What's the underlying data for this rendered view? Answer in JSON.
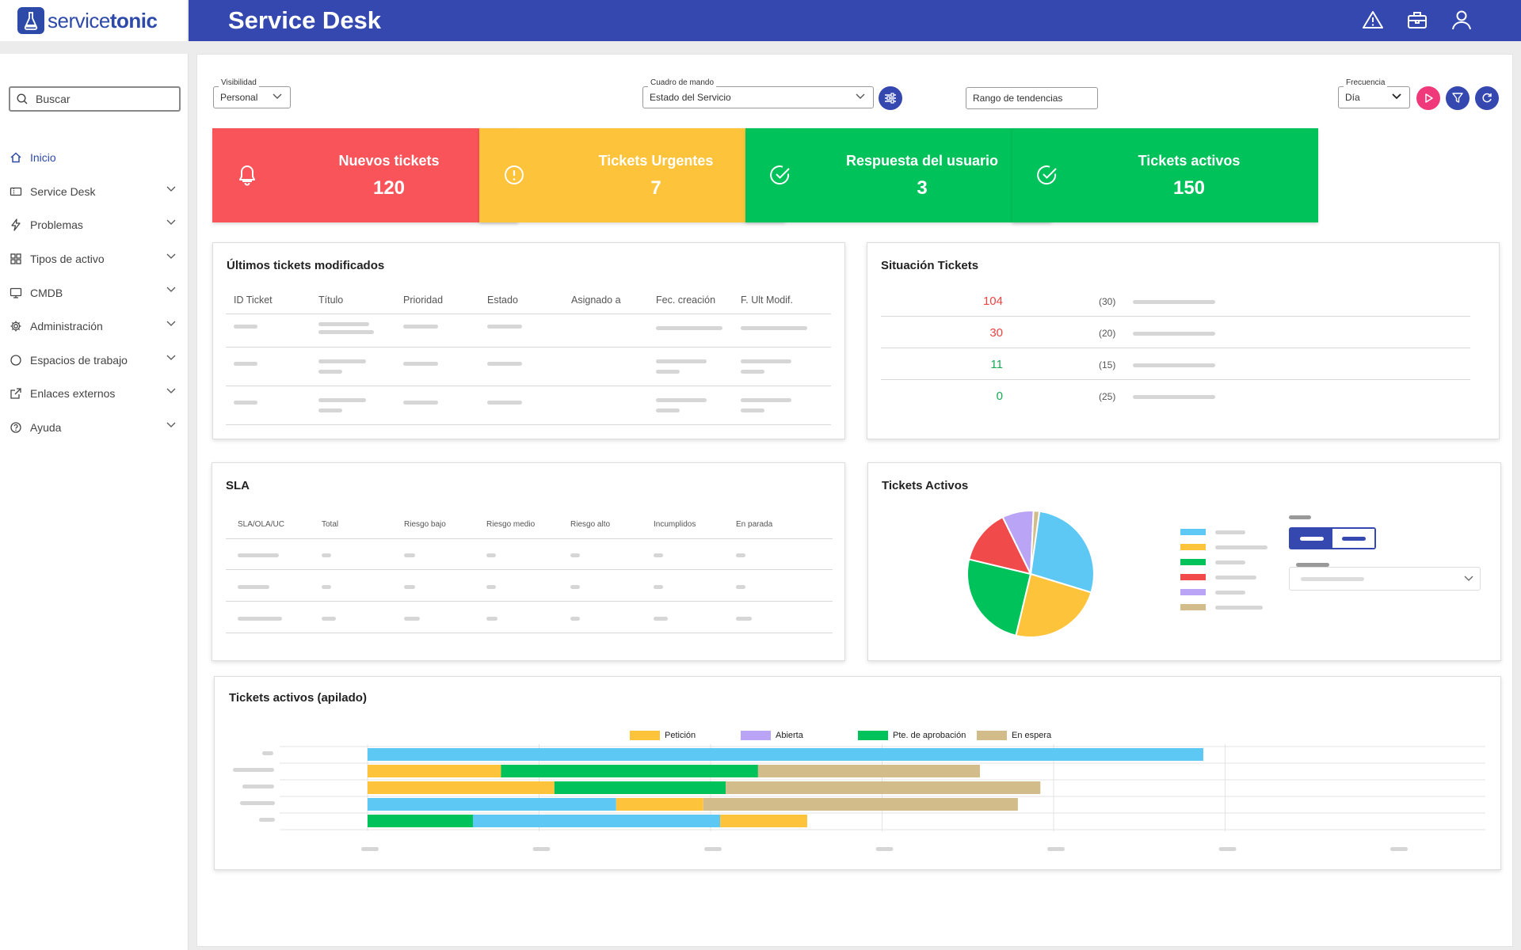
{
  "app": {
    "logo_thin": "service",
    "logo_bold": "tonic",
    "title": "Service Desk"
  },
  "header_icons": [
    "warning-icon",
    "toolbox-icon",
    "user-icon"
  ],
  "sidebar": {
    "search_placeholder": "Buscar",
    "items": [
      {
        "label": "Inicio",
        "icon": "home-icon",
        "active": true
      },
      {
        "label": "Service Desk",
        "icon": "ticket-icon"
      },
      {
        "label": "Problemas",
        "icon": "bolt-icon"
      },
      {
        "label": "Tipos de activo",
        "icon": "grid-icon"
      },
      {
        "label": "CMDB",
        "icon": "monitor-icon"
      },
      {
        "label": "Administración",
        "icon": "gear-icon"
      },
      {
        "label": "Espacios de trabajo",
        "icon": "circle-icon"
      },
      {
        "label": "Enlaces externos",
        "icon": "external-link-icon"
      },
      {
        "label": "Ayuda",
        "icon": "help-icon"
      }
    ]
  },
  "filters": {
    "visibility_label": "Visibilidad",
    "visibility_value": "Personal",
    "dashboard_label": "Cuadro de mando",
    "dashboard_value": "Estado del Servicio",
    "trend_range": "Rango de tendencias",
    "frequency_label": "Frecuencia",
    "frequency_value": "Día"
  },
  "kpis": [
    {
      "label": "Nuevos tickets",
      "value": "120",
      "color": "#f9545a",
      "icon": "bell-icon"
    },
    {
      "label": "Tickets Urgentes",
      "value": "7",
      "color": "#fdc43b",
      "icon": "alert-circle-icon"
    },
    {
      "label": "Respuesta del usuario",
      "value": "3",
      "color": "#00c25a",
      "icon": "check-circle-icon"
    },
    {
      "label": "Tickets activos",
      "value": "150",
      "color": "#00c25a",
      "icon": "check-circle-icon"
    }
  ],
  "recent_tickets": {
    "title": "Últimos tickets modificados",
    "columns": [
      "ID Ticket",
      "Título",
      "Prioridad",
      "Estado",
      "Asignado a",
      "Fec. creación",
      "F. Ult Modif."
    ]
  },
  "situation": {
    "title": "Situación Tickets",
    "rows": [
      {
        "value": "104",
        "count": "(30)",
        "color": "#e84545"
      },
      {
        "value": "30",
        "count": "(20)",
        "color": "#e84545"
      },
      {
        "value": "11",
        "count": "(15)",
        "color": "#1aaa55"
      },
      {
        "value": "0",
        "count": "(25)",
        "color": "#1aaa55"
      }
    ]
  },
  "sla": {
    "title": "SLA",
    "columns": [
      "SLA/OLA/UC",
      "Total",
      "Riesgo bajo",
      "Riesgo medio",
      "Riesgo alto",
      "Incumplidos",
      "En parada"
    ]
  },
  "active_tickets": {
    "title": "Tickets Activos",
    "chart_data": {
      "type": "pie",
      "colors": [
        "#5ec8f5",
        "#fdc43b",
        "#00c25a",
        "#f04a4a",
        "#b9a4f5",
        "#d2bd8a"
      ],
      "values": [
        27.5,
        24,
        25,
        14,
        8,
        1.5
      ]
    }
  },
  "stacked": {
    "title": "Tickets activos (apilado)",
    "chart_data": {
      "type": "bar",
      "orientation": "horizontal",
      "stacked": true,
      "legend": [
        "Petición",
        "Abierta",
        "Pte. de aprobación",
        "En espera"
      ],
      "legend_colors": [
        "#fdc43b",
        "#b9a4f5",
        "#00c25a",
        "#d2bd8a"
      ],
      "xlim": [
        0,
        600
      ],
      "bars": [
        [
          {
            "value": 595,
            "color": "#5ec8f5"
          }
        ],
        [
          {
            "value": 95,
            "color": "#fdc43b"
          },
          {
            "value": 183,
            "color": "#00c25a"
          },
          {
            "value": 158,
            "color": "#d2bd8a"
          }
        ],
        [
          {
            "value": 133,
            "color": "#fdc43b"
          },
          {
            "value": 122,
            "color": "#00c25a"
          },
          {
            "value": 224,
            "color": "#d2bd8a"
          }
        ],
        [
          {
            "value": 177,
            "color": "#5ec8f5"
          },
          {
            "value": 62,
            "color": "#fdc43b"
          },
          {
            "value": 224,
            "color": "#d2bd8a"
          }
        ],
        [
          {
            "value": 75,
            "color": "#00c25a"
          },
          {
            "value": 176,
            "color": "#5ec8f5"
          },
          {
            "value": 62,
            "color": "#fdc43b"
          }
        ]
      ]
    }
  }
}
